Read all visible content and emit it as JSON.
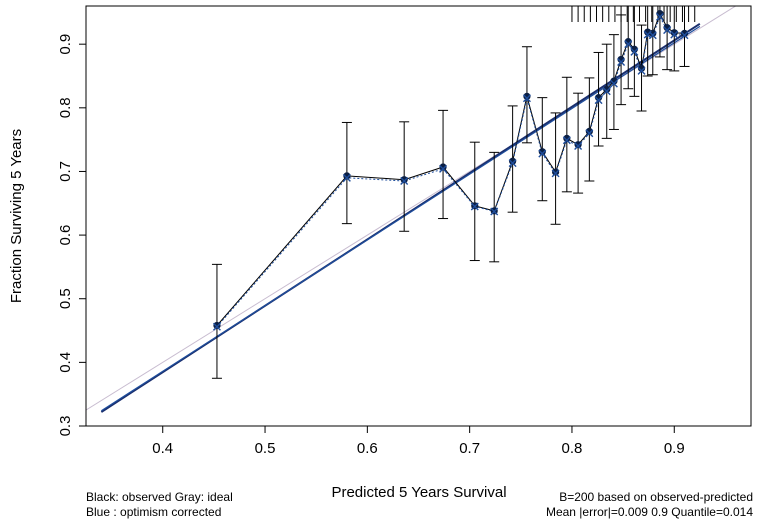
{
  "chart_data": {
    "type": "scatter",
    "title": "",
    "xlabel": "Predicted  5 Years Survival",
    "ylabel": "Fraction Surviving 5 Years",
    "xlim": [
      0.325,
      0.975
    ],
    "ylim": [
      0.3,
      0.96
    ],
    "xticks": [
      0.4,
      0.5,
      0.6,
      0.7,
      0.8,
      0.9
    ],
    "yticks": [
      0.3,
      0.4,
      0.5,
      0.6,
      0.7,
      0.8,
      0.9
    ],
    "grid": false,
    "colors": {
      "observed": "#000000",
      "corrected": "#1f4e9c",
      "ideal": "#c8bcd0",
      "fit": "#1a2f6e",
      "points": "#0b1f44"
    },
    "rug_x": [
      0.8,
      0.806,
      0.812,
      0.818,
      0.824,
      0.83,
      0.836,
      0.842,
      0.848,
      0.854,
      0.86,
      0.866,
      0.872,
      0.878,
      0.884,
      0.89,
      0.896,
      0.902,
      0.908,
      0.914,
      0.92
    ],
    "series": [
      {
        "kind": "observed",
        "x": [
          0.453,
          0.58,
          0.636,
          0.674,
          0.705,
          0.724,
          0.742,
          0.756,
          0.771,
          0.784,
          0.795,
          0.806,
          0.817,
          0.826,
          0.834,
          0.841,
          0.848,
          0.855,
          0.861,
          0.868,
          0.874,
          0.879,
          0.886,
          0.893,
          0.9,
          0.91
        ],
        "y": [
          0.458,
          0.693,
          0.687,
          0.707,
          0.646,
          0.638,
          0.716,
          0.818,
          0.731,
          0.699,
          0.752,
          0.742,
          0.763,
          0.816,
          0.829,
          0.842,
          0.876,
          0.904,
          0.892,
          0.862,
          0.919,
          0.917,
          0.948,
          0.926,
          0.918,
          0.917
        ],
        "lower": [
          0.375,
          0.618,
          0.606,
          0.626,
          0.56,
          0.558,
          0.636,
          0.745,
          0.654,
          0.617,
          0.668,
          0.666,
          0.685,
          0.74,
          0.752,
          0.766,
          0.805,
          0.83,
          0.818,
          0.795,
          0.85,
          0.852,
          0.88,
          0.86,
          0.858,
          0.865
        ],
        "upper": [
          0.554,
          0.777,
          0.778,
          0.796,
          0.746,
          0.73,
          0.803,
          0.896,
          0.816,
          0.792,
          0.848,
          0.823,
          0.847,
          0.887,
          0.9,
          0.915,
          0.946,
          0.96,
          0.96,
          0.93,
          0.96,
          0.96,
          0.96,
          0.96,
          0.96,
          0.96
        ]
      },
      {
        "kind": "corrected",
        "x": [
          0.453,
          0.58,
          0.636,
          0.674,
          0.705,
          0.724,
          0.742,
          0.756,
          0.771,
          0.784,
          0.795,
          0.806,
          0.817,
          0.826,
          0.834,
          0.841,
          0.848,
          0.855,
          0.861,
          0.868,
          0.874,
          0.879,
          0.886,
          0.893,
          0.9,
          0.91
        ],
        "y": [
          0.456,
          0.69,
          0.685,
          0.704,
          0.645,
          0.637,
          0.713,
          0.815,
          0.728,
          0.697,
          0.749,
          0.74,
          0.76,
          0.812,
          0.826,
          0.838,
          0.872,
          0.9,
          0.888,
          0.858,
          0.915,
          0.914,
          0.943,
          0.922,
          0.915,
          0.914
        ]
      },
      {
        "kind": "ideal",
        "x": [
          0.3,
          0.98
        ],
        "y": [
          0.3,
          0.98
        ]
      },
      {
        "kind": "fit",
        "x": [
          0.34,
          0.925
        ],
        "y": [
          0.322,
          0.932
        ]
      },
      {
        "kind": "fit-corrected",
        "x": [
          0.34,
          0.925
        ],
        "y": [
          0.324,
          0.928
        ]
      }
    ]
  },
  "footer": {
    "left_line1": "Black: observed  Gray: ideal",
    "left_line2": "Blue : optimism corrected",
    "right_line1": "B=200 based on observed-predicted",
    "right_line2": "Mean |error|=0.009  0.9 Quantile=0.014"
  }
}
